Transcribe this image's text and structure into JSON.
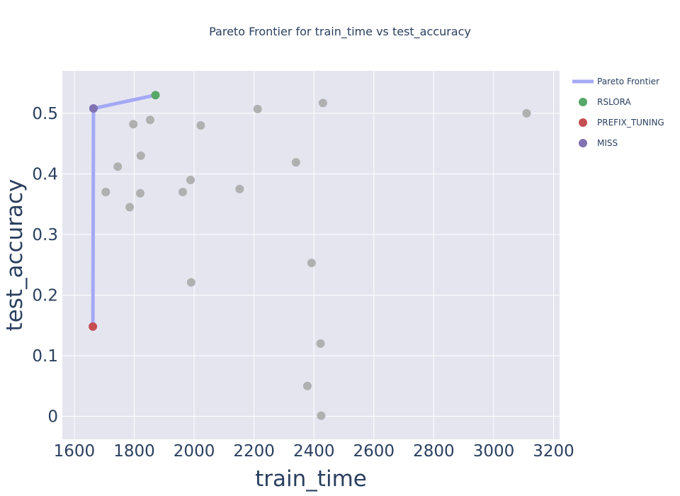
{
  "chart_data": {
    "type": "scatter",
    "title": "Pareto Frontier for train_time vs test_accuracy",
    "xlabel": "train_time",
    "ylabel": "test_accuracy",
    "xlim": [
      1560,
      3220
    ],
    "ylim": [
      -0.038,
      0.57
    ],
    "x_ticks": [
      1600,
      1800,
      2000,
      2200,
      2400,
      2600,
      2800,
      3000,
      3200
    ],
    "y_ticks": [
      0,
      0.1,
      0.2,
      0.3,
      0.4,
      0.5
    ],
    "y_tick_labels": [
      "0",
      "0.1",
      "0.2",
      "0.3",
      "0.4",
      "0.5"
    ],
    "grid": true,
    "legend_position": "top-right",
    "other_points": {
      "color": "#b0b0b0",
      "points": [
        {
          "x": 1705,
          "y": 0.37
        },
        {
          "x": 1745,
          "y": 0.412
        },
        {
          "x": 1785,
          "y": 0.345
        },
        {
          "x": 1797,
          "y": 0.482
        },
        {
          "x": 1820,
          "y": 0.368
        },
        {
          "x": 1822,
          "y": 0.43
        },
        {
          "x": 1853,
          "y": 0.489
        },
        {
          "x": 1962,
          "y": 0.37
        },
        {
          "x": 1988,
          "y": 0.39
        },
        {
          "x": 1990,
          "y": 0.221
        },
        {
          "x": 2022,
          "y": 0.48
        },
        {
          "x": 2152,
          "y": 0.375
        },
        {
          "x": 2212,
          "y": 0.507
        },
        {
          "x": 2340,
          "y": 0.419
        },
        {
          "x": 2378,
          "y": 0.05
        },
        {
          "x": 2392,
          "y": 0.253
        },
        {
          "x": 2422,
          "y": 0.12
        },
        {
          "x": 2424,
          "y": 0.001
        },
        {
          "x": 2430,
          "y": 0.517
        },
        {
          "x": 3110,
          "y": 0.5
        }
      ]
    },
    "pareto_frontier": {
      "name": "Pareto Frontier",
      "color": "#a4a9f5",
      "points": [
        {
          "x": 1662,
          "y": 0.148
        },
        {
          "x": 1664,
          "y": 0.508
        },
        {
          "x": 1871,
          "y": 0.53
        }
      ]
    },
    "highlighted": [
      {
        "name": "RSLORA",
        "color": "#55a868",
        "x": 1871,
        "y": 0.53
      },
      {
        "name": "PREFIX_TUNING",
        "color": "#c44e52",
        "x": 1662,
        "y": 0.148
      },
      {
        "name": "MISS",
        "color": "#8172b3",
        "x": 1664,
        "y": 0.508
      }
    ]
  }
}
